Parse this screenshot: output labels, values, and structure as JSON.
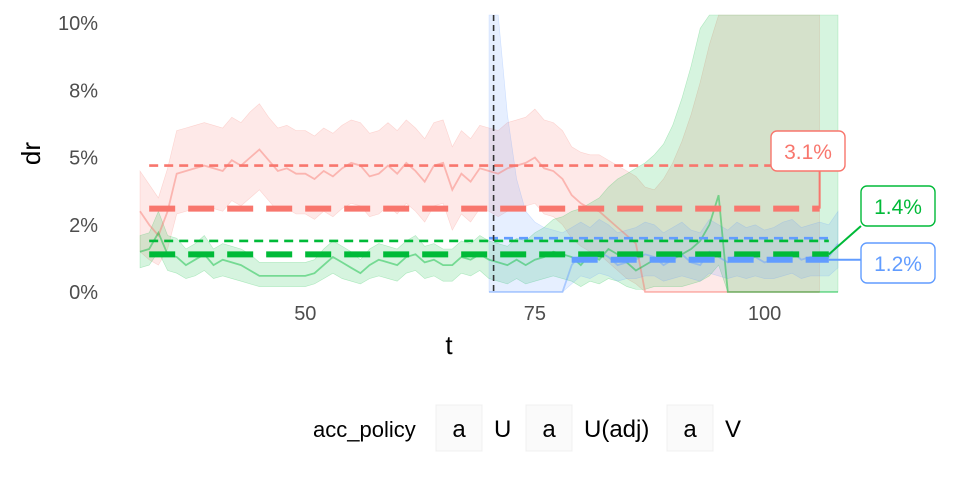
{
  "chart_data": {
    "type": "line",
    "xlabel": "t",
    "ylabel": "dr",
    "xlim": [
      32,
      108
    ],
    "ylim": [
      0,
      10.3
    ],
    "x_ticks": [
      50,
      75,
      100
    ],
    "y_ticks": [
      {
        "value": 0,
        "label": "0%"
      },
      {
        "value": 2.5,
        "label": "2%"
      },
      {
        "value": 5,
        "label": "5%"
      },
      {
        "value": 7.5,
        "label": "8%"
      },
      {
        "value": 10,
        "label": "10%"
      }
    ],
    "intervention_x": 70.5,
    "legend": {
      "title": "acc_policy",
      "position": "bottom",
      "key_glyph": "a",
      "entries": [
        "U",
        "U(adj)",
        "V"
      ]
    },
    "colors": {
      "U": "#F8766D",
      "U(adj)": "#00BA38",
      "V": "#619CFF"
    },
    "series": [
      {
        "name": "U",
        "color": "#F8766D",
        "x": [
          32,
          33,
          34,
          35,
          36,
          37,
          38,
          39,
          40,
          41,
          42,
          43,
          44,
          45,
          46,
          47,
          48,
          49,
          50,
          51,
          52,
          53,
          54,
          55,
          56,
          57,
          58,
          59,
          60,
          61,
          62,
          63,
          64,
          65,
          66,
          67,
          68,
          69,
          70,
          71,
          72,
          73,
          74,
          75,
          76,
          77,
          78,
          79,
          80,
          81,
          82,
          83,
          84,
          85,
          86,
          87,
          88,
          89,
          90,
          91,
          92,
          93,
          94,
          95,
          96,
          97,
          98,
          99,
          100,
          101,
          102,
          103,
          104,
          105,
          106
        ],
        "y": [
          3.0,
          2.5,
          2.1,
          3.0,
          4.4,
          4.5,
          4.6,
          4.7,
          4.6,
          4.5,
          4.9,
          4.7,
          5.0,
          5.3,
          4.9,
          4.5,
          4.6,
          4.4,
          4.4,
          4.2,
          4.5,
          4.3,
          4.6,
          4.8,
          4.7,
          4.3,
          4.4,
          4.7,
          4.4,
          4.8,
          4.5,
          4.1,
          4.7,
          4.8,
          3.8,
          4.4,
          4.1,
          4.6,
          4.5,
          4.4,
          4.6,
          4.7,
          4.8,
          5.0,
          4.6,
          4.5,
          4.2,
          3.6,
          3.3,
          3.1,
          3.0,
          2.7,
          2.4,
          2.1,
          1.8,
          0.0,
          0.0,
          0.0,
          0.0,
          0.0,
          0.0,
          0.0,
          0.0,
          0.0,
          0.0,
          0.0,
          0.0,
          0.0,
          0.0,
          0.0,
          0.0,
          0.0,
          0.0,
          0.0,
          0.0
        ],
        "lower": [
          1.5,
          1.2,
          1.0,
          1.6,
          2.9,
          3.0,
          3.1,
          3.2,
          3.1,
          3.0,
          3.4,
          3.2,
          3.5,
          3.8,
          3.4,
          3.0,
          3.1,
          2.9,
          2.9,
          2.7,
          3.0,
          2.8,
          3.1,
          3.3,
          3.2,
          2.8,
          2.9,
          3.2,
          2.9,
          3.3,
          3.0,
          2.6,
          3.2,
          3.3,
          2.3,
          2.9,
          2.6,
          3.1,
          3.0,
          2.8,
          3.0,
          3.1,
          3.2,
          3.3,
          2.9,
          2.8,
          2.5,
          2.0,
          1.7,
          1.5,
          1.4,
          1.1,
          0.8,
          0.5,
          0.3,
          0.0,
          0.0,
          0.0,
          0.0,
          0.0,
          0.0,
          0.0,
          0.0,
          0.0,
          0.0,
          0.0,
          0.0,
          0.0,
          0.0,
          0.0,
          0.0,
          0.0,
          0.0,
          0.0,
          0.0
        ],
        "upper": [
          4.5,
          4.0,
          3.5,
          4.6,
          6.0,
          6.1,
          6.2,
          6.3,
          6.2,
          6.1,
          6.5,
          6.3,
          6.7,
          7.0,
          6.5,
          6.1,
          6.2,
          6.0,
          6.0,
          5.8,
          6.1,
          5.9,
          6.2,
          6.4,
          6.3,
          5.9,
          6.0,
          6.3,
          6.0,
          6.4,
          6.1,
          5.7,
          6.3,
          6.4,
          5.4,
          6.0,
          5.7,
          6.2,
          6.1,
          6.0,
          6.3,
          6.4,
          6.5,
          6.8,
          6.4,
          6.3,
          6.0,
          5.4,
          5.2,
          5.1,
          5.1,
          4.9,
          4.7,
          4.5,
          4.3,
          3.9,
          3.8,
          4.2,
          4.8,
          5.6,
          6.6,
          7.8,
          9.2,
          10.3,
          10.3,
          10.3,
          10.3,
          10.3,
          10.3,
          10.3,
          10.3,
          10.3,
          10.3,
          10.3,
          10.3
        ],
        "ref_means": [
          {
            "x": [
              33,
              106
            ],
            "y": 4.7,
            "style": "thin-dash"
          },
          {
            "x": [
              33,
              106
            ],
            "y": 3.1,
            "style": "thick-dash"
          }
        ],
        "label": {
          "text": "3.1%",
          "value": 3.1,
          "at_x": 106
        }
      },
      {
        "name": "U(adj)",
        "color": "#00BA38",
        "x": [
          32,
          33,
          34,
          35,
          36,
          37,
          38,
          39,
          40,
          41,
          42,
          43,
          44,
          45,
          46,
          47,
          48,
          49,
          50,
          51,
          52,
          53,
          54,
          55,
          56,
          57,
          58,
          59,
          60,
          61,
          62,
          63,
          64,
          65,
          66,
          67,
          68,
          69,
          70,
          71,
          72,
          73,
          74,
          75,
          76,
          77,
          78,
          79,
          80,
          81,
          82,
          83,
          84,
          85,
          86,
          87,
          88,
          89,
          90,
          91,
          92,
          93,
          94,
          95,
          96,
          97,
          98,
          99,
          100,
          101,
          102,
          103,
          104,
          105,
          106,
          107,
          108
        ],
        "y": [
          1.5,
          1.6,
          2.2,
          1.4,
          1.3,
          1.0,
          1.2,
          1.4,
          1.0,
          1.2,
          1.1,
          1.0,
          0.8,
          0.6,
          0.6,
          0.6,
          0.6,
          0.6,
          0.6,
          0.7,
          1.0,
          1.3,
          1.1,
          0.9,
          0.7,
          1.0,
          1.2,
          1.1,
          1.0,
          1.3,
          1.4,
          1.1,
          1.2,
          1.0,
          1.0,
          1.3,
          1.2,
          1.4,
          1.2,
          1.1,
          1.0,
          1.2,
          1.0,
          1.2,
          1.3,
          1.5,
          1.4,
          1.3,
          1.0,
          1.4,
          1.2,
          1.6,
          1.4,
          1.1,
          0.8,
          1.0,
          1.2,
          1.3,
          1.4,
          1.4,
          1.6,
          1.9,
          2.5,
          3.6,
          0.0,
          0.0,
          0.0,
          0.0,
          0.0,
          0.0,
          0.0,
          0.0,
          0.0,
          0.0,
          0.0,
          0.0,
          0.0
        ],
        "lower": [
          0.9,
          1.0,
          1.5,
          0.8,
          0.7,
          0.5,
          0.6,
          0.8,
          0.5,
          0.6,
          0.5,
          0.4,
          0.3,
          0.2,
          0.2,
          0.2,
          0.2,
          0.2,
          0.2,
          0.3,
          0.5,
          0.7,
          0.5,
          0.4,
          0.3,
          0.5,
          0.6,
          0.5,
          0.4,
          0.7,
          0.8,
          0.5,
          0.6,
          0.4,
          0.4,
          0.7,
          0.6,
          0.8,
          0.5,
          0.4,
          0.3,
          0.5,
          0.3,
          0.4,
          0.5,
          0.6,
          0.5,
          0.4,
          0.2,
          0.4,
          0.3,
          0.5,
          0.4,
          0.2,
          0.1,
          0.1,
          0.2,
          0.2,
          0.2,
          0.2,
          0.3,
          0.4,
          0.6,
          1.0,
          0.0,
          0.0,
          0.0,
          0.0,
          0.0,
          0.0,
          0.0,
          0.0,
          0.0,
          0.0,
          0.0,
          0.0,
          0.0
        ],
        "upper": [
          2.1,
          2.2,
          3.0,
          2.1,
          2.0,
          1.6,
          1.8,
          2.1,
          1.6,
          1.8,
          1.7,
          1.6,
          1.4,
          1.1,
          1.1,
          1.1,
          1.1,
          1.1,
          1.1,
          1.2,
          1.6,
          1.9,
          1.7,
          1.5,
          1.2,
          1.6,
          1.8,
          1.7,
          1.6,
          1.9,
          2.1,
          1.7,
          1.8,
          1.6,
          1.6,
          1.9,
          1.8,
          2.1,
          1.9,
          1.8,
          1.7,
          2.0,
          1.9,
          2.2,
          2.4,
          2.7,
          2.8,
          3.0,
          3.1,
          3.3,
          3.5,
          3.9,
          4.2,
          4.4,
          4.6,
          4.8,
          5.1,
          5.5,
          6.2,
          7.2,
          8.4,
          9.8,
          10.3,
          10.3,
          10.3,
          10.3,
          10.3,
          10.3,
          10.3,
          10.3,
          10.3,
          10.3,
          10.3,
          10.3,
          10.3,
          10.3,
          10.3
        ],
        "ref_means": [
          {
            "x": [
              33,
              107
            ],
            "y": 1.9,
            "style": "thin-dash"
          },
          {
            "x": [
              33,
              107
            ],
            "y": 1.4,
            "style": "thick-dash"
          }
        ],
        "label": {
          "text": "1.4%",
          "value": 1.4,
          "at_x": 107
        }
      },
      {
        "name": "V",
        "color": "#619CFF",
        "x": [
          70,
          71,
          72,
          73,
          74,
          75,
          76,
          77,
          78,
          79,
          80,
          81,
          82,
          83,
          84,
          85,
          86,
          87,
          88,
          89,
          90,
          91,
          92,
          93,
          94,
          95,
          96,
          97,
          98,
          99,
          100,
          101,
          102,
          103,
          104,
          105,
          106,
          107,
          108
        ],
        "y": [
          0.0,
          0.0,
          0.0,
          0.0,
          0.0,
          0.0,
          0.0,
          0.0,
          0.0,
          1.0,
          1.4,
          1.2,
          1.5,
          1.3,
          1.0,
          1.1,
          1.2,
          1.4,
          1.3,
          1.0,
          1.2,
          1.4,
          1.1,
          1.0,
          1.5,
          1.3,
          1.1,
          1.4,
          1.2,
          1.3,
          1.1,
          1.2,
          1.4,
          1.5,
          1.2,
          1.3,
          1.4,
          1.3,
          1.8
        ],
        "lower": [
          0.0,
          0.0,
          0.0,
          0.0,
          0.0,
          0.0,
          0.0,
          0.0,
          0.0,
          0.3,
          0.6,
          0.5,
          0.7,
          0.6,
          0.4,
          0.5,
          0.5,
          0.6,
          0.6,
          0.4,
          0.5,
          0.6,
          0.5,
          0.4,
          0.7,
          0.6,
          0.5,
          0.6,
          0.5,
          0.6,
          0.5,
          0.5,
          0.6,
          0.7,
          0.5,
          0.6,
          0.6,
          0.6,
          0.9
        ],
        "upper": [
          10.3,
          10.3,
          6.6,
          4.2,
          3.0,
          2.6,
          2.4,
          2.3,
          2.2,
          2.4,
          2.6,
          2.4,
          2.7,
          2.5,
          2.2,
          2.3,
          2.4,
          2.6,
          2.5,
          2.2,
          2.4,
          2.6,
          2.3,
          2.2,
          2.7,
          2.5,
          2.3,
          2.6,
          2.4,
          2.5,
          2.3,
          2.4,
          2.6,
          2.7,
          2.4,
          2.5,
          2.6,
          2.5,
          3.0
        ],
        "ref_means": [
          {
            "x": [
              70,
              107
            ],
            "y": 2.0,
            "style": "thin-dash"
          },
          {
            "x": [
              79,
              107
            ],
            "y": 1.2,
            "style": "thick-dash"
          }
        ],
        "label": {
          "text": "1.2%",
          "value": 1.2,
          "at_x": 107
        }
      }
    ]
  }
}
